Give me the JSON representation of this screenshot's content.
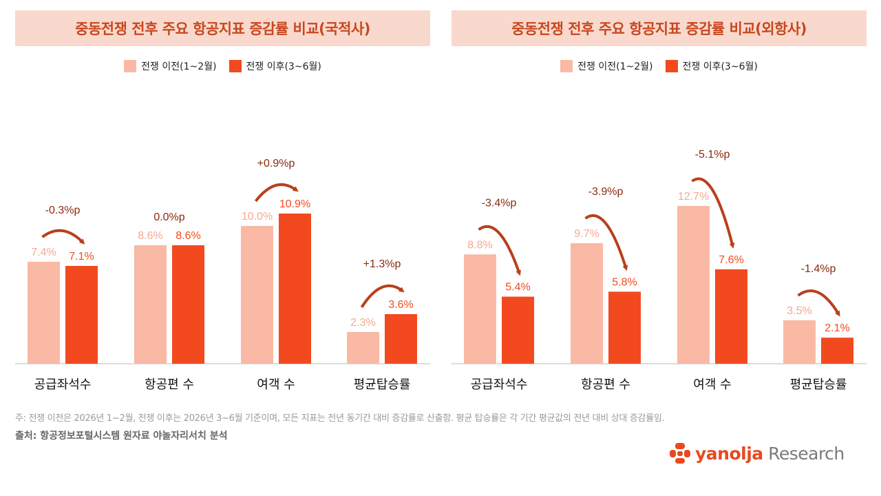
{
  "chart_data": [
    {
      "type": "bar",
      "title": "중동전쟁 전후 주요 항공지표 증감률 비교(국적사)",
      "categories": [
        "공급좌석수",
        "항공편 수",
        "여객 수",
        "평균탑승률"
      ],
      "series": [
        {
          "name": "전쟁 이전(1~2월)",
          "values": [
            7.4,
            8.6,
            10.0,
            2.3
          ],
          "labels": [
            "7.4%",
            "8.6%",
            "10.0%",
            "2.3%"
          ],
          "color": "#f9b9a4"
        },
        {
          "name": "전쟁 이후(3~6월)",
          "values": [
            7.1,
            8.6,
            10.9,
            3.6
          ],
          "labels": [
            "7.1%",
            "8.6%",
            "10.9%",
            "3.6%"
          ],
          "color": "#f24a1e"
        }
      ],
      "changes": [
        "-0.3%p",
        "0.0%p",
        "+0.9%p",
        "+1.3%p"
      ],
      "ylim": [
        0,
        16.5
      ],
      "legend": "top-center",
      "grid": false
    },
    {
      "type": "bar",
      "title": "중동전쟁 전후 주요 항공지표 증감률 비교(외항사)",
      "categories": [
        "공급좌석수",
        "항공편 수",
        "여객 수",
        "평균탑승률"
      ],
      "series": [
        {
          "name": "전쟁 이전(1~2월)",
          "values": [
            8.8,
            9.7,
            12.7,
            3.5
          ],
          "labels": [
            "8.8%",
            "9.7%",
            "12.7%",
            "3.5%"
          ],
          "color": "#f9b9a4"
        },
        {
          "name": "전쟁 이후(3~6월)",
          "values": [
            5.4,
            5.8,
            7.6,
            2.1
          ],
          "labels": [
            "5.4%",
            "5.8%",
            "7.6%",
            "2.1%"
          ],
          "color": "#f24a1e"
        }
      ],
      "changes": [
        "-3.4%p",
        "-3.9%p",
        "-5.1%p",
        "-1.4%p"
      ],
      "ylim": [
        0,
        18.3
      ],
      "legend": "top-center",
      "grid": false
    }
  ],
  "footer": {
    "note": "주: 전쟁 이전은 2026년 1~2월, 전쟁 이후는 2026년 3~6월 기준이며, 모든 지표는 전년 동기간 대비 증감률로 산출함. 평균 탑승률은 각 기간 평균값의 전년 대비 상대 증감률임.",
    "source": "출처: 항공정보포털시스템 원자료 야놀자리서치 분석"
  },
  "logo": {
    "brand": "yanolja",
    "suffix": " Research",
    "icon": "yanolja-logo-icon"
  },
  "colors": {
    "before": "#f9b9a4",
    "after": "#f24a1e",
    "before_label": "#f4a98f",
    "change_label": "#8a2a0e",
    "arrow": "#b8401c",
    "title_bg": "#f9d9cd",
    "title_text": "#c8471f"
  }
}
